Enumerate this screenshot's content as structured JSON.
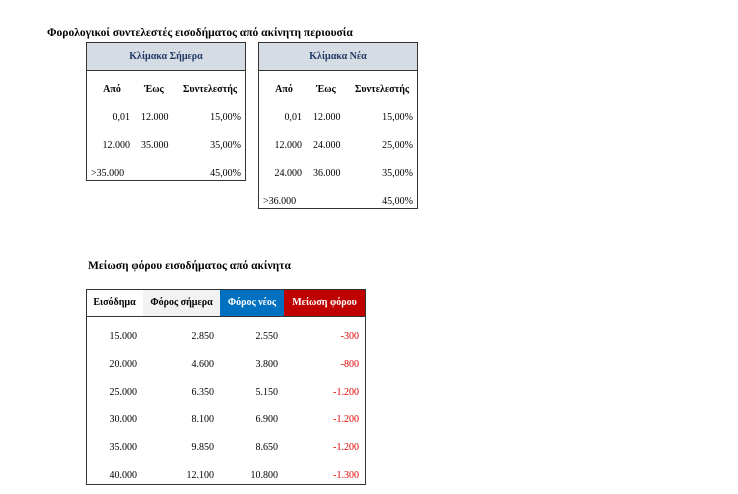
{
  "title": "Φορολογικοί συντελεστές εισοδήματος από ακίνητη περιουσία",
  "scales": [
    {
      "title": "Κλίμακα Σήμερα",
      "headers": [
        "Από",
        "Έως",
        "Συντελεστής"
      ],
      "rows": [
        {
          "from": "0,01",
          "to": "12.000",
          "rate": "15,00%"
        },
        {
          "from": "12.000",
          "to": "35.000",
          "rate": "35,00%"
        },
        {
          "from": ">35.000",
          "rate": "45,00%"
        }
      ]
    },
    {
      "title": "Κλίμακα Νέα",
      "headers": [
        "Από",
        "Έως",
        "Συντελεστής"
      ],
      "rows": [
        {
          "from": "0,01",
          "to": "12.000",
          "rate": "15,00%"
        },
        {
          "from": "12.000",
          "to": "24.000",
          "rate": "25,00%"
        },
        {
          "from": "24.000",
          "to": "36.000",
          "rate": "35,00%"
        },
        {
          "from": ">36.000",
          "rate": "45,00%"
        }
      ]
    }
  ],
  "reduction": {
    "title": "Μείωση φόρου εισοδήματος από ακίνητα",
    "headers": [
      "Εισόδημα",
      "Φόρος σήμερα",
      "Φόρος νέος",
      "Μείωση φόρου"
    ],
    "rows": [
      [
        "15.000",
        "2.850",
        "2.550",
        "-300"
      ],
      [
        "20.000",
        "4.600",
        "3.800",
        "-800"
      ],
      [
        "25.000",
        "6.350",
        "5.150",
        "-1.200"
      ],
      [
        "30.000",
        "8.100",
        "6.900",
        "-1.200"
      ],
      [
        "35.000",
        "9.850",
        "8.650",
        "-1.200"
      ],
      [
        "40.000",
        "12.100",
        "10.800",
        "-1.300"
      ]
    ]
  }
}
